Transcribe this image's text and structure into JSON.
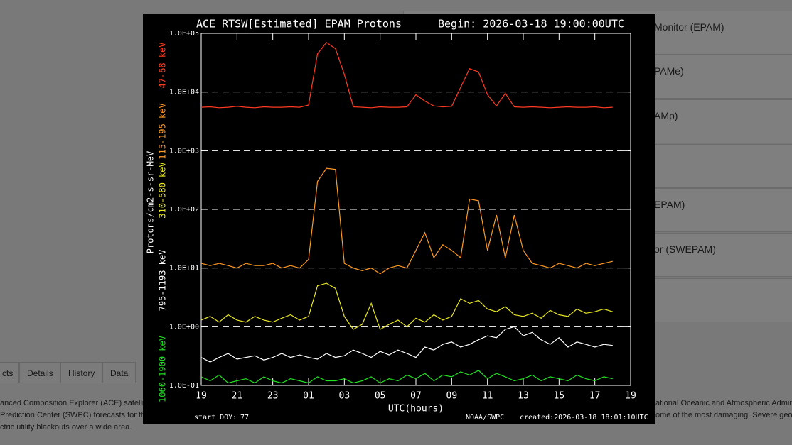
{
  "background": {
    "list_items": [
      "Monitor (EPAM)",
      "PAMe)",
      "AMp)",
      "EPAM)",
      "or (SWEPAM)"
    ],
    "tabs": [
      "cts",
      "Details",
      "History",
      "Data"
    ],
    "text_left": [
      "anced Composition Explorer (ACE) satellite",
      "Prediction Center (SWPC) forecasts for th",
      "ctric utility blackouts over a wide area."
    ],
    "text_right": [
      "ational Oceanic and Atmospheric Admin",
      "ome of the most damaging. Severe geo"
    ]
  },
  "chart_data": {
    "type": "line",
    "title": "ACE RTSW[Estimated] EPAM Protons",
    "subtitle": "Begin: 2026-03-18 19:00:00UTC",
    "y_label": "Protons/cm2-s-sr-MeV",
    "x_label": "UTC(hours)",
    "footer_left_label": "start DOY:",
    "footer_left_value": "77",
    "footer_source": "NOAA/SWPC",
    "footer_created": "created:2026-03-18 18:01:10UTC",
    "log_y": true,
    "ylim": [
      0.1,
      100000
    ],
    "yticks": [
      {
        "value": 100000,
        "label": "1.0E+05"
      },
      {
        "value": 10000,
        "label": "1.0E+04"
      },
      {
        "value": 1000,
        "label": "1.0E+03"
      },
      {
        "value": 100,
        "label": "1.0E+02"
      },
      {
        "value": 10,
        "label": "1.0E+01"
      },
      {
        "value": 1,
        "label": "1.0E+00"
      },
      {
        "value": 0.1,
        "label": "1.0E-01"
      }
    ],
    "dashed_levels": [
      10000,
      1000,
      100,
      10,
      1
    ],
    "xlim": [
      0,
      24
    ],
    "xticks": [
      {
        "value": 0,
        "label": "19"
      },
      {
        "value": 2,
        "label": "21"
      },
      {
        "value": 4,
        "label": "23"
      },
      {
        "value": 6,
        "label": "01"
      },
      {
        "value": 8,
        "label": "03"
      },
      {
        "value": 10,
        "label": "05"
      },
      {
        "value": 12,
        "label": "07"
      },
      {
        "value": 14,
        "label": "09"
      },
      {
        "value": 16,
        "label": "11"
      },
      {
        "value": 18,
        "label": "13"
      },
      {
        "value": 20,
        "label": "15"
      },
      {
        "value": 22,
        "label": "17"
      },
      {
        "value": 24,
        "label": "19"
      }
    ],
    "x": [
      0,
      0.5,
      1,
      1.5,
      2,
      2.5,
      3,
      3.5,
      4,
      4.5,
      5,
      5.5,
      6,
      6.5,
      7,
      7.5,
      8,
      8.5,
      9,
      9.5,
      10,
      10.5,
      11,
      11.5,
      12,
      12.5,
      13,
      13.5,
      14,
      14.5,
      15,
      15.5,
      16,
      16.5,
      17,
      17.5,
      18,
      18.5,
      19,
      19.5,
      20,
      20.5,
      21,
      21.5,
      22,
      22.5,
      23
    ],
    "series": [
      {
        "name": "47-68 keV",
        "color": "#ff3a22",
        "values": [
          5500,
          5600,
          5400,
          5500,
          5700,
          5500,
          5400,
          5600,
          5500,
          5500,
          5600,
          5500,
          6000,
          45000,
          70000,
          55000,
          20000,
          5600,
          5500,
          5400,
          5600,
          5500,
          5500,
          5600,
          9000,
          7000,
          5800,
          5600,
          5700,
          12000,
          25000,
          22000,
          9000,
          5800,
          9500,
          5600,
          5500,
          5600,
          5500,
          5400,
          5500,
          5600,
          5500,
          5500,
          5600,
          5400,
          5500
        ]
      },
      {
        "name": "115-195 keV",
        "color": "#ff9a22",
        "values": [
          12,
          11,
          12,
          11,
          10,
          12,
          11,
          11,
          12,
          10,
          11,
          10,
          14,
          300,
          500,
          480,
          12,
          10,
          9,
          10,
          8,
          10,
          11,
          10,
          20,
          40,
          15,
          25,
          20,
          15,
          150,
          140,
          20,
          80,
          15,
          80,
          20,
          12,
          11,
          10,
          12,
          11,
          10,
          12,
          11,
          12,
          13
        ]
      },
      {
        "name": "310-580 keV",
        "color": "#e8e820",
        "values": [
          1.3,
          1.5,
          1.2,
          1.6,
          1.3,
          1.2,
          1.5,
          1.3,
          1.2,
          1.4,
          1.6,
          1.3,
          1.5,
          5,
          5.5,
          4.5,
          1.5,
          0.9,
          1.1,
          2.5,
          0.9,
          1.1,
          1.3,
          1.0,
          1.4,
          1.2,
          1.6,
          1.3,
          1.5,
          3,
          2.5,
          2.8,
          2,
          1.8,
          2.2,
          1.6,
          1.5,
          1.7,
          1.4,
          1.9,
          1.6,
          1.5,
          2,
          1.7,
          1.8,
          2,
          1.8
        ]
      },
      {
        "name": "795-1193 keV",
        "color": "#ffffff",
        "values": [
          0.3,
          0.25,
          0.3,
          0.35,
          0.28,
          0.3,
          0.32,
          0.27,
          0.3,
          0.35,
          0.3,
          0.33,
          0.3,
          0.28,
          0.35,
          0.3,
          0.32,
          0.4,
          0.35,
          0.3,
          0.38,
          0.33,
          0.4,
          0.35,
          0.3,
          0.45,
          0.4,
          0.5,
          0.55,
          0.45,
          0.5,
          0.6,
          0.7,
          0.65,
          0.9,
          1,
          0.7,
          0.8,
          0.6,
          0.5,
          0.65,
          0.45,
          0.55,
          0.5,
          0.45,
          0.5,
          0.48
        ]
      },
      {
        "name": "1060-1900 keV",
        "color": "#22e022",
        "values": [
          0.14,
          0.12,
          0.15,
          0.11,
          0.12,
          0.13,
          0.11,
          0.14,
          0.12,
          0.11,
          0.13,
          0.12,
          0.11,
          0.14,
          0.12,
          0.12,
          0.13,
          0.11,
          0.12,
          0.14,
          0.11,
          0.13,
          0.12,
          0.15,
          0.13,
          0.16,
          0.12,
          0.15,
          0.14,
          0.17,
          0.15,
          0.18,
          0.13,
          0.16,
          0.14,
          0.12,
          0.13,
          0.15,
          0.12,
          0.14,
          0.13,
          0.12,
          0.15,
          0.13,
          0.12,
          0.14,
          0.13
        ]
      }
    ]
  }
}
